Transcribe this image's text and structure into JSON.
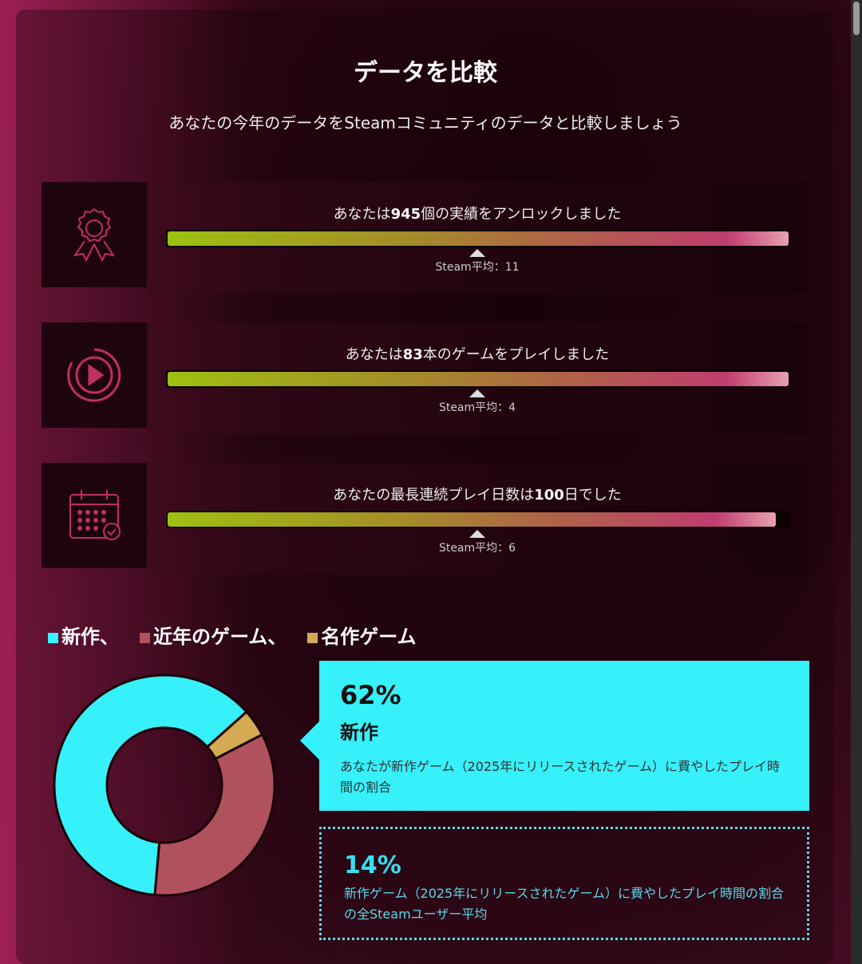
{
  "title": "データを比較",
  "subtitle": "あなたの今年のデータをSteamコミュニティのデータと比較しましょう",
  "stats": [
    {
      "icon": "award-ribbon-icon",
      "pre": "あなたは",
      "value": "945",
      "post": "個の実績をアンロックしました",
      "avg_label": "Steam平均：11",
      "fill": 1.0
    },
    {
      "icon": "play-circle-icon",
      "pre": "あなたは",
      "value": "83",
      "post": "本のゲームをプレイしました",
      "avg_label": "Steam平均：4",
      "fill": 1.0
    },
    {
      "icon": "calendar-check-icon",
      "pre": "あなたの最長連続プレイ日数は",
      "value": "100",
      "post": "日でした",
      "avg_label": "Steam平均：6",
      "fill": 0.98
    }
  ],
  "legend": [
    {
      "label": "新作、",
      "color": "#36f0fa"
    },
    {
      "label": "近年のゲーム、",
      "color": "#b0525e"
    },
    {
      "label": "名作ゲーム",
      "color": "#d6aa52"
    }
  ],
  "chart_data": {
    "type": "pie",
    "donut": true,
    "categories": [
      "新作",
      "名作ゲーム",
      "近年のゲーム"
    ],
    "values": [
      62,
      4,
      34
    ],
    "colors": [
      "#36f0fa",
      "#d6aa52",
      "#b0525e"
    ]
  },
  "highlight": {
    "percent": "62%",
    "label": "新作",
    "description": "あなたが新作ゲーム（2025年にリリースされたゲーム）に費やしたプレイ時間の割合"
  },
  "community": {
    "percent": "14%",
    "description": "新作ゲーム（2025年にリリースされたゲーム）に費やしたプレイ時間の割合の全Steamユーザー平均"
  }
}
